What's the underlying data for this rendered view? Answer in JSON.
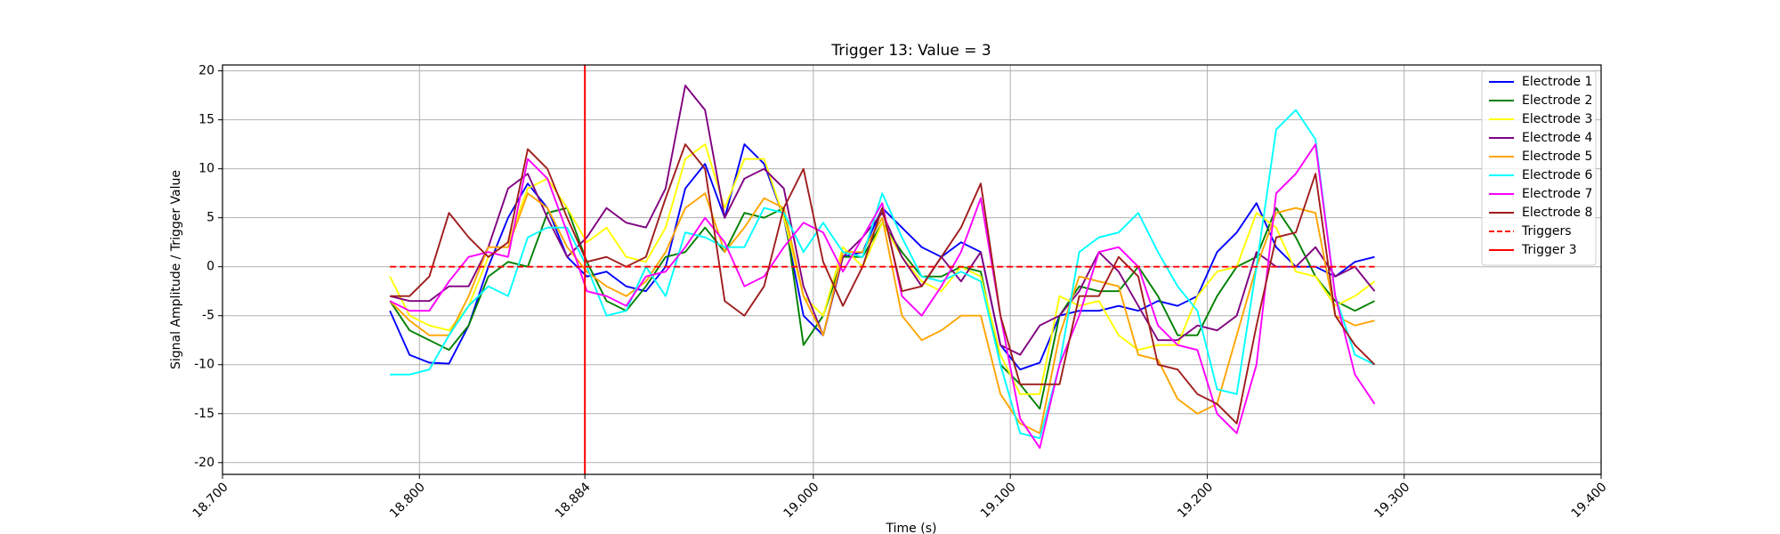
{
  "chart_data": {
    "type": "line",
    "title": "Trigger 13: Value = 3",
    "xlabel": "Time (s)",
    "ylabel": "Signal Amplitude / Trigger Value",
    "x": [
      18.785,
      18.795,
      18.805,
      18.815,
      18.825,
      18.835,
      18.845,
      18.855,
      18.865,
      18.875,
      18.885,
      18.895,
      18.905,
      18.915,
      18.925,
      18.935,
      18.945,
      18.955,
      18.965,
      18.975,
      18.985,
      18.995,
      19.005,
      19.015,
      19.025,
      19.035,
      19.045,
      19.055,
      19.065,
      19.075,
      19.085,
      19.095,
      19.105,
      19.115,
      19.125,
      19.135,
      19.145,
      19.155,
      19.165,
      19.175,
      19.185,
      19.195,
      19.205,
      19.215,
      19.225,
      19.235,
      19.245,
      19.255,
      19.265,
      19.275,
      19.285
    ],
    "series": [
      {
        "name": "Electrode 1",
        "color": "#0000ff",
        "values": [
          -4.5,
          -9,
          -9.8,
          -9.9,
          -6,
          0,
          5,
          8.5,
          6,
          1,
          -1,
          -0.5,
          -2,
          -2.5,
          0,
          8,
          10.5,
          5,
          12.5,
          10.5,
          5,
          -5,
          -7,
          1,
          1.5,
          6,
          4,
          2,
          1,
          2.5,
          1.5,
          -8,
          -10.5,
          -9.8,
          -5,
          -4.5,
          -4.5,
          -4,
          -4.5,
          -3.5,
          -4,
          -3,
          1.5,
          3.5,
          6.5,
          2,
          0,
          0,
          -1,
          0.5,
          1
        ]
      },
      {
        "name": "Electrode 2",
        "color": "#008000",
        "values": [
          -3.5,
          -6.5,
          -7.5,
          -8.5,
          -6,
          -1,
          0.5,
          0,
          5.5,
          6,
          0.5,
          -3.5,
          -4.5,
          -2,
          1,
          1.5,
          4,
          1.5,
          5.5,
          5,
          6,
          -8,
          -5,
          1,
          1,
          4.5,
          1.5,
          -1,
          -1,
          0,
          -0.5,
          -10,
          -12,
          -14.5,
          -5,
          -2,
          -2.5,
          -2.5,
          0,
          -3,
          -7,
          -7,
          -3,
          0,
          1,
          6,
          3,
          -1,
          -3.5,
          -4.5,
          -3.5
        ]
      },
      {
        "name": "Electrode 3",
        "color": "#ffff00",
        "values": [
          -1,
          -5,
          -6,
          -6.5,
          -4,
          1,
          2.5,
          8,
          9,
          6,
          2.5,
          4,
          1,
          0.5,
          4,
          11,
          12.5,
          6,
          11,
          11,
          5,
          -3,
          -5,
          2,
          0,
          4.5,
          1,
          -1.5,
          -2.5,
          0,
          -1,
          -9,
          -13,
          -13,
          -3,
          -4,
          -3.5,
          -7,
          -8.5,
          -8,
          -8,
          -3,
          -0.5,
          0,
          5.5,
          4,
          -0.5,
          -1,
          -4,
          -3,
          -1.5
        ]
      },
      {
        "name": "Electrode 4",
        "color": "#800080",
        "values": [
          -3,
          -3.5,
          -3.5,
          -2,
          -2,
          2,
          8,
          9.5,
          5,
          1,
          3,
          6,
          4.5,
          4,
          8,
          18.5,
          16,
          5,
          9,
          10,
          8,
          -2,
          -7,
          1,
          3,
          5.5,
          1,
          -2,
          1,
          -1.5,
          1.5,
          -8,
          -9,
          -6,
          -5,
          -2.5,
          1.5,
          -0.5,
          -4,
          -7.5,
          -7.5,
          -6,
          -6.5,
          -5,
          1.5,
          0,
          0,
          2,
          -1,
          0,
          -2.5
        ]
      },
      {
        "name": "Electrode 5",
        "color": "#ffa500",
        "values": [
          -3.5,
          -5.5,
          -7,
          -7,
          -3,
          2,
          2,
          7.5,
          6,
          2,
          -0.5,
          -2,
          -3,
          -1.5,
          1.5,
          6,
          7.5,
          1.5,
          4,
          7,
          6,
          -3,
          -7,
          1.5,
          1.5,
          5,
          -5,
          -7.5,
          -6.5,
          -5,
          -5,
          -13,
          -16,
          -17,
          -7,
          -1,
          -1.5,
          -2,
          -9,
          -9.5,
          -13.5,
          -15,
          -14,
          -7,
          0,
          5.5,
          6,
          5.5,
          -5,
          -6,
          -5.5
        ]
      },
      {
        "name": "Electrode 6",
        "color": "#00ffff",
        "values": [
          -11,
          -11,
          -10.5,
          -7,
          -4,
          -2,
          -3,
          3,
          4,
          4,
          0,
          -5,
          -4.5,
          0,
          -3,
          3.5,
          3,
          2,
          2,
          6,
          5.5,
          1.5,
          4.5,
          1.5,
          1,
          7.5,
          3,
          -1,
          -1.5,
          -0.5,
          -1.5,
          -10,
          -17,
          -17.5,
          -10,
          1.5,
          3,
          3.5,
          5.5,
          1.5,
          -2,
          -4.5,
          -12.5,
          -13,
          0,
          14,
          16,
          13,
          -3,
          -9,
          -10
        ]
      },
      {
        "name": "Electrode 7",
        "color": "#ff00ff",
        "values": [
          -3.5,
          -4.5,
          -4.5,
          -1.5,
          1,
          1.5,
          1,
          11,
          9,
          3.5,
          -2.5,
          -3,
          -4,
          -1,
          -0.5,
          2,
          5,
          2.5,
          -2,
          -1,
          2,
          4.5,
          3.5,
          -0.5,
          3,
          6.5,
          -3,
          -5,
          -2,
          1.5,
          7,
          -5,
          -15.5,
          -18.5,
          -10,
          -5,
          1.5,
          2,
          0,
          -6,
          -8,
          -8.5,
          -15,
          -17,
          -10,
          7.5,
          9.5,
          12.5,
          -3,
          -11,
          -14
        ]
      },
      {
        "name": "Electrode 8",
        "color": "#a01c1c",
        "values": [
          -3,
          -3,
          -1,
          5.5,
          3,
          1,
          2.5,
          12,
          10,
          5,
          0.5,
          1,
          0,
          1,
          7,
          12.5,
          10,
          -3.5,
          -5,
          -2,
          6,
          10,
          0.5,
          -4,
          0,
          6,
          -2.5,
          -2,
          1,
          4,
          8.5,
          -5,
          -12,
          -12,
          -12,
          -3,
          -3,
          1,
          -1,
          -10,
          -10.5,
          -13,
          -14,
          -16,
          -6,
          3,
          3.5,
          9.5,
          -5,
          -8,
          -10
        ]
      },
      {
        "name": "Triggers",
        "color": "#ff0000",
        "dashed": true,
        "x": [
          18.785,
          19.285
        ],
        "values": [
          0,
          0
        ]
      },
      {
        "name": "Trigger 3",
        "color": "#ff0000",
        "vline": 18.884
      }
    ],
    "xlim": [
      18.7,
      19.4
    ],
    "xticks": [
      {
        "value": 18.7,
        "label": "18.700"
      },
      {
        "value": 18.8,
        "label": "18.800"
      },
      {
        "value": 18.884,
        "label": "18.884"
      },
      {
        "value": 19.0,
        "label": "19.000"
      },
      {
        "value": 19.1,
        "label": "19.100"
      },
      {
        "value": 19.2,
        "label": "19.200"
      },
      {
        "value": 19.3,
        "label": "19.300"
      },
      {
        "value": 19.4,
        "label": "19.400"
      }
    ],
    "ylim": [
      -21.2,
      20.6
    ],
    "yticks": [
      -20,
      -15,
      -10,
      -5,
      0,
      5,
      10,
      15,
      20
    ],
    "grid": true,
    "legend": "upper right"
  }
}
